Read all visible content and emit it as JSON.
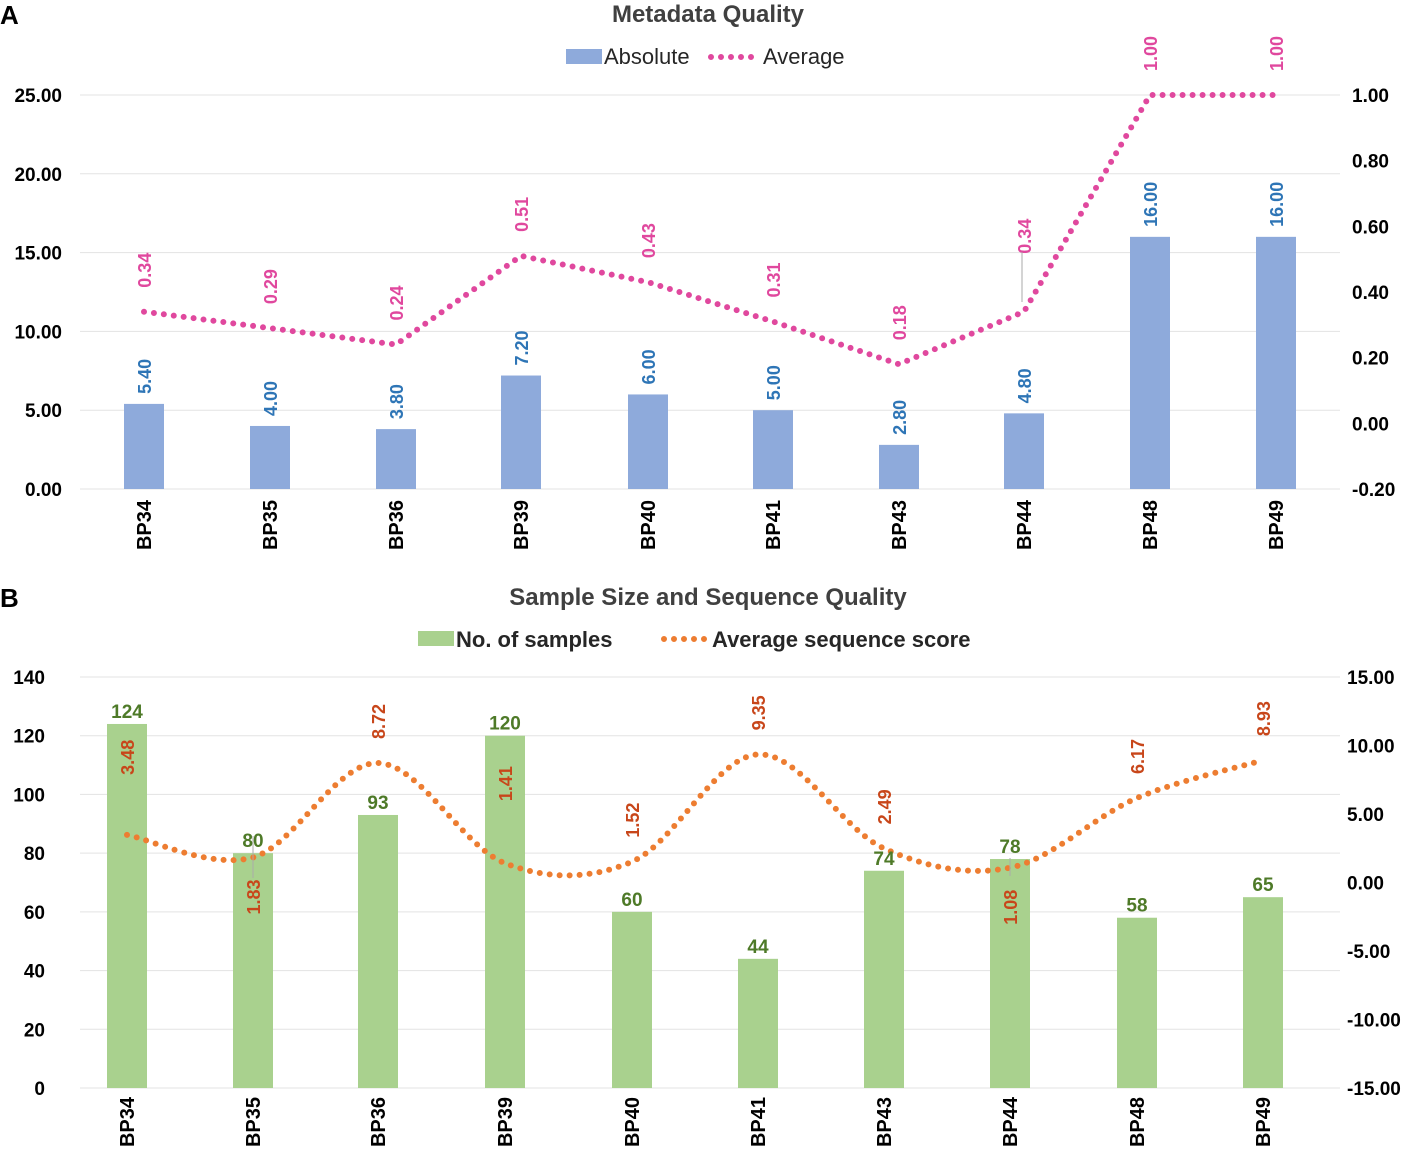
{
  "chart_data": [
    {
      "panel": "A",
      "type": "bar+line",
      "title": "Metadata Quality",
      "categories": [
        "BP34",
        "BP35",
        "BP36",
        "BP39",
        "BP40",
        "BP41",
        "BP43",
        "BP44",
        "BP48",
        "BP49"
      ],
      "series": [
        {
          "name": "Absolute",
          "type": "bar",
          "axis": "left",
          "color": "#8eaadb",
          "values": [
            5.4,
            4.0,
            3.8,
            7.2,
            6.0,
            5.0,
            2.8,
            4.8,
            16.0,
            16.0
          ],
          "labels": [
            "5.40",
            "4.00",
            "3.80",
            "7.20",
            "6.00",
            "5.00",
            "2.80",
            "4.80",
            "16.00",
            "16.00"
          ]
        },
        {
          "name": "Average",
          "type": "line",
          "style": "dotted",
          "axis": "right",
          "color": "#e0489e",
          "values": [
            0.34,
            0.29,
            0.24,
            0.51,
            0.43,
            0.31,
            0.18,
            0.34,
            1.0,
            1.0
          ],
          "labels": [
            "0.34",
            "0.29",
            "0.24",
            "0.51",
            "0.43",
            "0.31",
            "0.18",
            "0.34",
            "1.00",
            "1.00"
          ]
        }
      ],
      "left_axis": {
        "min": 0,
        "max": 25,
        "ticks": [
          "0.00",
          "5.00",
          "10.00",
          "15.00",
          "20.00",
          "25.00"
        ]
      },
      "right_axis": {
        "min": -0.2,
        "max": 1.0,
        "ticks": [
          "-0.20",
          "0.00",
          "0.20",
          "0.40",
          "0.60",
          "0.80",
          "1.00"
        ]
      },
      "legend_position": "top-center",
      "grid": true
    },
    {
      "panel": "B",
      "type": "bar+line",
      "title": "Sample Size and Sequence Quality",
      "categories": [
        "BP34",
        "BP35",
        "BP36",
        "BP39",
        "BP40",
        "BP41",
        "BP43",
        "BP44",
        "BP48",
        "BP49"
      ],
      "series": [
        {
          "name": "No. of samples",
          "type": "bar",
          "axis": "left",
          "color": "#a9d18e",
          "values": [
            124,
            80,
            93,
            120,
            60,
            44,
            74,
            78,
            58,
            65
          ],
          "labels": [
            "124",
            "80",
            "93",
            "120",
            "60",
            "44",
            "74",
            "78",
            "58",
            "65"
          ]
        },
        {
          "name": "Average sequence score",
          "type": "line",
          "style": "dotted",
          "axis": "right",
          "color": "#ed7d31",
          "values": [
            3.48,
            1.83,
            8.72,
            1.41,
            1.52,
            9.35,
            2.49,
            1.08,
            6.17,
            8.93
          ],
          "labels": [
            "3.48",
            "1.83",
            "8.72",
            "1.41",
            "1.52",
            "9.35",
            "2.49",
            "1.08",
            "6.17",
            "8.93"
          ]
        }
      ],
      "left_axis": {
        "min": 0,
        "max": 140,
        "ticks": [
          "0",
          "20",
          "40",
          "60",
          "80",
          "100",
          "120",
          "140"
        ]
      },
      "right_axis": {
        "min": -15,
        "max": 15,
        "ticks": [
          "-15.00",
          "-10.00",
          "-5.00",
          "0.00",
          "5.00",
          "10.00",
          "15.00"
        ]
      },
      "legend_position": "top-center",
      "grid": true
    }
  ]
}
